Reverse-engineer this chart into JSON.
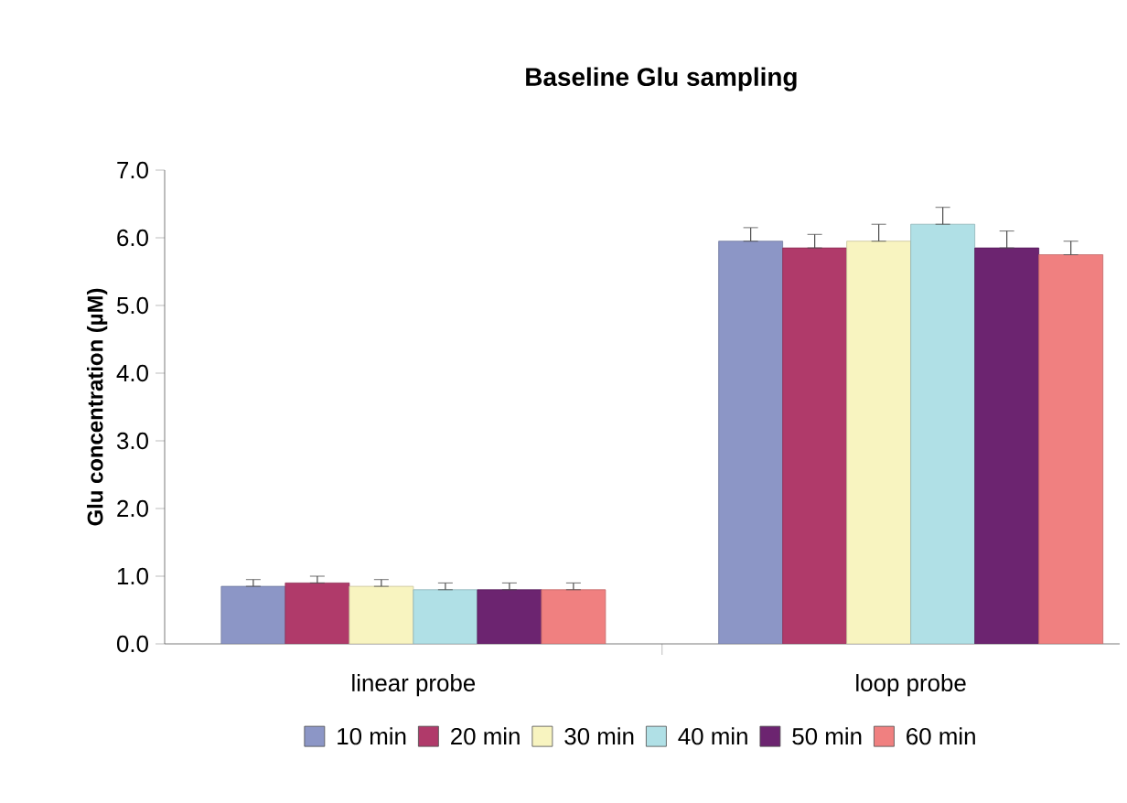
{
  "chart_data": {
    "type": "bar",
    "title": "Baseline Glu sampling",
    "ylabel": "Glu concentration (µM)",
    "categories": [
      "linear probe",
      "loop probe"
    ],
    "series": [
      {
        "name": "10 min",
        "color": "#8c96c6",
        "values": [
          0.85,
          5.95
        ],
        "errors": [
          [
            0.85,
            0.95
          ],
          [
            5.95,
            6.15
          ]
        ]
      },
      {
        "name": "20 min",
        "color": "#b03a6a",
        "values": [
          0.9,
          5.85
        ],
        "errors": [
          [
            0.9,
            1.0
          ],
          [
            5.85,
            6.05
          ]
        ]
      },
      {
        "name": "30 min",
        "color": "#f8f4c0",
        "values": [
          0.85,
          5.95
        ],
        "errors": [
          [
            0.85,
            0.95
          ],
          [
            5.95,
            6.2
          ]
        ]
      },
      {
        "name": "40 min",
        "color": "#b0e0e6",
        "values": [
          0.8,
          6.2
        ],
        "errors": [
          [
            0.8,
            0.9
          ],
          [
            6.2,
            6.45
          ]
        ]
      },
      {
        "name": "50 min",
        "color": "#6c2470",
        "values": [
          0.8,
          5.85
        ],
        "errors": [
          [
            0.8,
            0.9
          ],
          [
            5.85,
            6.1
          ]
        ]
      },
      {
        "name": "60 min",
        "color": "#f08080",
        "values": [
          0.8,
          5.75
        ],
        "errors": [
          [
            0.8,
            0.9
          ],
          [
            5.75,
            5.95
          ]
        ]
      }
    ],
    "ylim": [
      0,
      7
    ],
    "yticks": [
      {
        "value": 0,
        "label": "0.0"
      },
      {
        "value": 1,
        "label": "1.0"
      },
      {
        "value": 2,
        "label": "2.0"
      },
      {
        "value": 3,
        "label": "3.0"
      },
      {
        "value": 4,
        "label": "4.0"
      },
      {
        "value": 5,
        "label": "5.0"
      },
      {
        "value": 6,
        "label": "6.0"
      },
      {
        "value": 7,
        "label": "7.0"
      }
    ],
    "grid": false,
    "legend": "bottom"
  }
}
